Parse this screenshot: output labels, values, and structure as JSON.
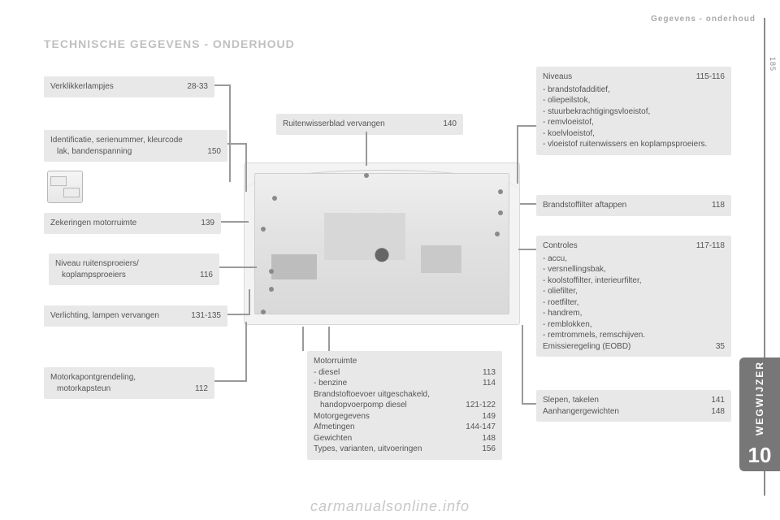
{
  "header": {
    "breadcrumb": "Gegevens - onderhoud",
    "page_number": "185"
  },
  "title": "TECHNISCHE GEGEVENS - ONDERHOUD",
  "tab": {
    "label": "WEGWIJZER",
    "number": "10"
  },
  "boxes": {
    "warning_lamps": {
      "label": "Verklikkerlampjes",
      "page": "28-33"
    },
    "ident": {
      "line1": "Identificatie, serienummer, kleurcode",
      "line2": "lak, bandenspanning",
      "page": "150"
    },
    "fuses": {
      "label": "Zekeringen motorruimte",
      "page": "139"
    },
    "washers": {
      "line1": "Niveau ruitensproeiers/",
      "line2": "koplampsproeiers",
      "page": "116"
    },
    "bulbs": {
      "label": "Verlichting, lampen vervangen",
      "page": "131-135"
    },
    "bonnet": {
      "line1": "Motorkapontgrendeling,",
      "line2": "motorkapsteun",
      "page": "112"
    },
    "wiper": {
      "label": "Ruitenwisserblad vervangen",
      "page": "140"
    },
    "levels": {
      "title": "Niveaus",
      "page": "115-116",
      "items": [
        "brandstofadditief,",
        "oliepeilstok,",
        "stuurbekrachtigingsvloeistof,",
        "remvloeistof,",
        "koelvloeistof,",
        "vloeistof ruitenwissers en koplampsproeiers."
      ]
    },
    "fuelfilter": {
      "label": "Brandstoffilter aftappen",
      "page": "118"
    },
    "checks": {
      "title": "Controles",
      "page": "117-118",
      "items": [
        "accu,",
        "versnellingsbak,",
        "koolstoffilter, interieurfilter,",
        "oliefilter,",
        "roetfilter,",
        "handrem,",
        "remblokken,",
        "remtrommels, remschijven."
      ],
      "eobd_label": "Emissieregeling (EOBD)",
      "eobd_page": "35"
    },
    "engine": {
      "title": "Motorruimte",
      "rows": [
        {
          "label": "diesel",
          "page": "113",
          "bullet": true
        },
        {
          "label": "benzine",
          "page": "114",
          "bullet": true
        },
        {
          "label": "Brandstoftoevoer uitgeschakeld,",
          "page": "",
          "bullet": false
        },
        {
          "label": "handopvoerpomp diesel",
          "page": "121-122",
          "bullet": false,
          "indent": true
        },
        {
          "label": "Motorgegevens",
          "page": "149",
          "bullet": false
        },
        {
          "label": "Afmetingen",
          "page": "144-147",
          "bullet": false
        },
        {
          "label": "Gewichten",
          "page": "148",
          "bullet": false
        },
        {
          "label": "Types, varianten, uitvoeringen",
          "page": "156",
          "bullet": false
        }
      ]
    },
    "tow": {
      "rows": [
        {
          "label": "Slepen, takelen",
          "page": "141"
        },
        {
          "label": "Aanhangergewichten",
          "page": "148"
        }
      ]
    }
  },
  "watermark": "carmanualsonline.info",
  "colors": {
    "box_bg": "#e8e8e8",
    "text": "#555555",
    "leader": "#9a9a9a",
    "tab_bg": "#777777"
  }
}
